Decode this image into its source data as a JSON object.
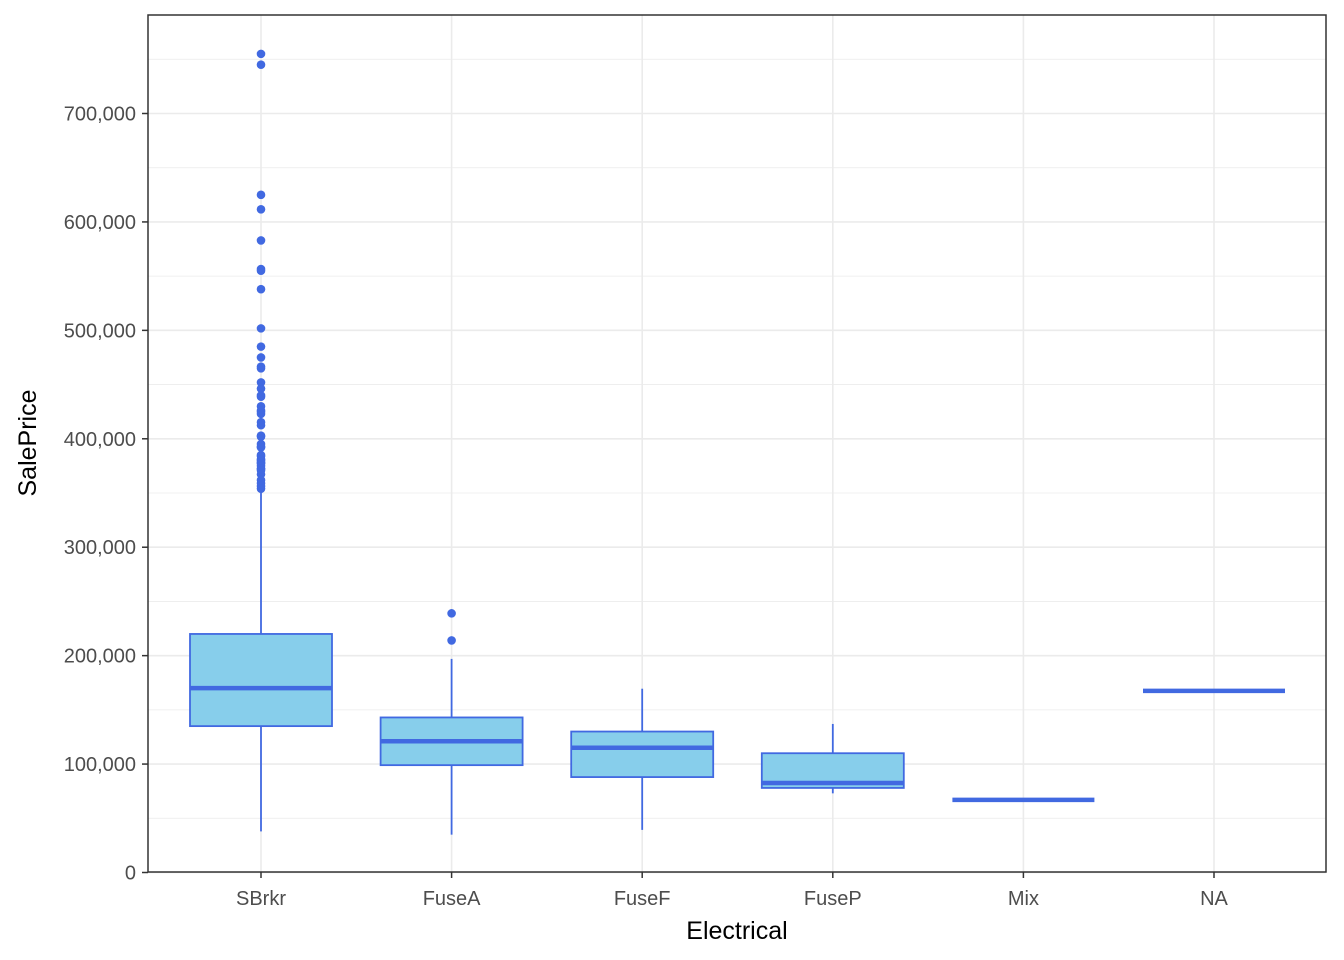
{
  "chart_data": {
    "type": "boxplot",
    "title": "",
    "xlabel": "Electrical",
    "ylabel": "SalePrice",
    "ylim": [
      0,
      755000
    ],
    "yticks": [
      0,
      100000,
      200000,
      300000,
      400000,
      500000,
      600000,
      700000
    ],
    "ytick_labels": [
      "0",
      "100,000",
      "200,000",
      "300,000",
      "400,000",
      "500,000",
      "600,000",
      "700,000"
    ],
    "grid": true,
    "categories": [
      "SBrkr",
      "FuseA",
      "FuseF",
      "FuseP",
      "Mix",
      "NA"
    ],
    "boxes": [
      {
        "category": "SBrkr",
        "whisker_low": 37900,
        "q1": 135000,
        "median": 170000,
        "q3": 220000,
        "whisker_high": 352000,
        "outliers": [
          755000,
          745000,
          625000,
          611657,
          582933,
          556581,
          555000,
          538000,
          501837,
          485000,
          475000,
          466500,
          465000,
          452000,
          446261,
          440000,
          438780,
          430000,
          426000,
          424870,
          423000,
          415298,
          412500,
          402861,
          402000,
          395192,
          392500,
          392000,
          385000,
          383970,
          381000,
          380000,
          378500,
          377500,
          377426,
          375000,
          372402,
          372500,
          370878,
          367294,
          361919,
          359100,
          356383,
          354000
        ]
      },
      {
        "category": "FuseA",
        "whisker_low": 34900,
        "q1": 99000,
        "median": 121000,
        "q3": 143000,
        "whisker_high": 197000,
        "outliers": [
          239000,
          214000
        ]
      },
      {
        "category": "FuseF",
        "whisker_low": 39300,
        "q1": 88000,
        "median": 115000,
        "q3": 130000,
        "whisker_high": 169500,
        "outliers": []
      },
      {
        "category": "FuseP",
        "whisker_low": 73000,
        "q1": 78000,
        "median": 82500,
        "q3": 110000,
        "whisker_high": 137000,
        "outliers": []
      },
      {
        "category": "Mix",
        "whisker_low": 67000,
        "q1": 67000,
        "median": 67000,
        "q3": 67000,
        "whisker_high": 67000,
        "outliers": []
      },
      {
        "category": "NA",
        "whisker_low": 167500,
        "q1": 167500,
        "median": 167500,
        "q3": 167500,
        "whisker_high": 167500,
        "outliers": []
      }
    ],
    "colors": {
      "fill": "#87ceeb",
      "stroke": "#4169e1",
      "grid": "#ebebeb",
      "panel_border": "#333333"
    }
  }
}
